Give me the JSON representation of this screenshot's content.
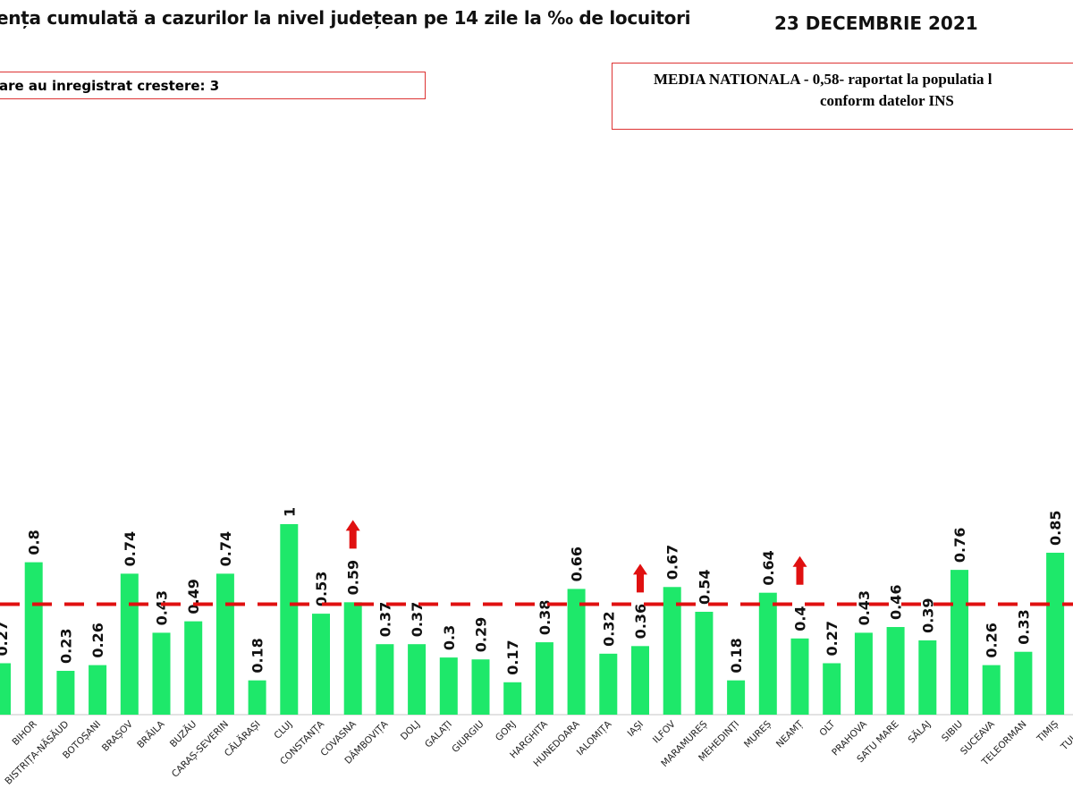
{
  "header": {
    "title": "ența cumulată a cazurilor la nivel județean pe 14 zile la ‰ de locuitori",
    "date": "23 DECEMBRIE 2021"
  },
  "info_box": {
    "text": "are au inregistrat crestere: 3"
  },
  "national_box": {
    "line1": "MEDIA NATIONALA - 0,58-  raportat la populatia l",
    "line2": "conform datelor INS"
  },
  "colors": {
    "bar": "#1ee86a",
    "reference_line": "#e01010",
    "increase_arrow": "#e01010"
  },
  "chart_data": {
    "type": "bar",
    "reference_line": {
      "value": 0.58,
      "style": "dashed"
    },
    "ylim": [
      0,
      1
    ],
    "categories": [
      "",
      "BIHOR",
      "BISTRIȚA-NĂSĂUD",
      "BOTOȘANI",
      "BRAȘOV",
      "BRĂILA",
      "BUZĂU",
      "CARAȘ-SEVERIN",
      "CĂLĂRAȘI",
      "CLUJ",
      "CONSTANȚA",
      "COVASNA",
      "DÂMBOVIȚA",
      "DOLJ",
      "GALAȚI",
      "GIURGIU",
      "GORJ",
      "HARGHITA",
      "HUNEDOARA",
      "IALOMIȚA",
      "IAȘI",
      "ILFOV",
      "MARAMUREȘ",
      "MEHEDINȚI",
      "MUREȘ",
      "NEAMȚ",
      "OLT",
      "PRAHOVA",
      "SATU MARE",
      "SĂLAJ",
      "SIBIU",
      "SUCEAVA",
      "TELEORMAN",
      "TIMIȘ",
      "TULCEA"
    ],
    "values": [
      0.27,
      0.8,
      0.23,
      0.26,
      0.74,
      0.43,
      0.49,
      0.74,
      0.18,
      1,
      0.53,
      0.59,
      0.37,
      0.37,
      0.3,
      0.29,
      0.17,
      0.38,
      0.66,
      0.32,
      0.36,
      0.67,
      0.54,
      0.18,
      0.64,
      0.4,
      0.27,
      0.43,
      0.46,
      0.39,
      0.76,
      0.26,
      0.33,
      0.85,
      null
    ],
    "data_labels": [
      "0.27",
      "0.8",
      "0.23",
      "0.26",
      "0.74",
      "0.43",
      "0.49",
      "0.74",
      "0.18",
      "1",
      "0.53",
      "0.59",
      "0.37",
      "0.37",
      "0.3",
      "0.29",
      "0.17",
      "0.38",
      "0.66",
      "0.32",
      "0.36",
      "0.67",
      "0.54",
      "0.18",
      "0.64",
      "0.4",
      "0.27",
      "0.43",
      "0.46",
      "0.39",
      "0.76",
      "0.26",
      "0.33",
      "0.85",
      ""
    ],
    "increase_marked": [
      "COVASNA",
      "IAȘI",
      "NEAMȚ"
    ]
  }
}
